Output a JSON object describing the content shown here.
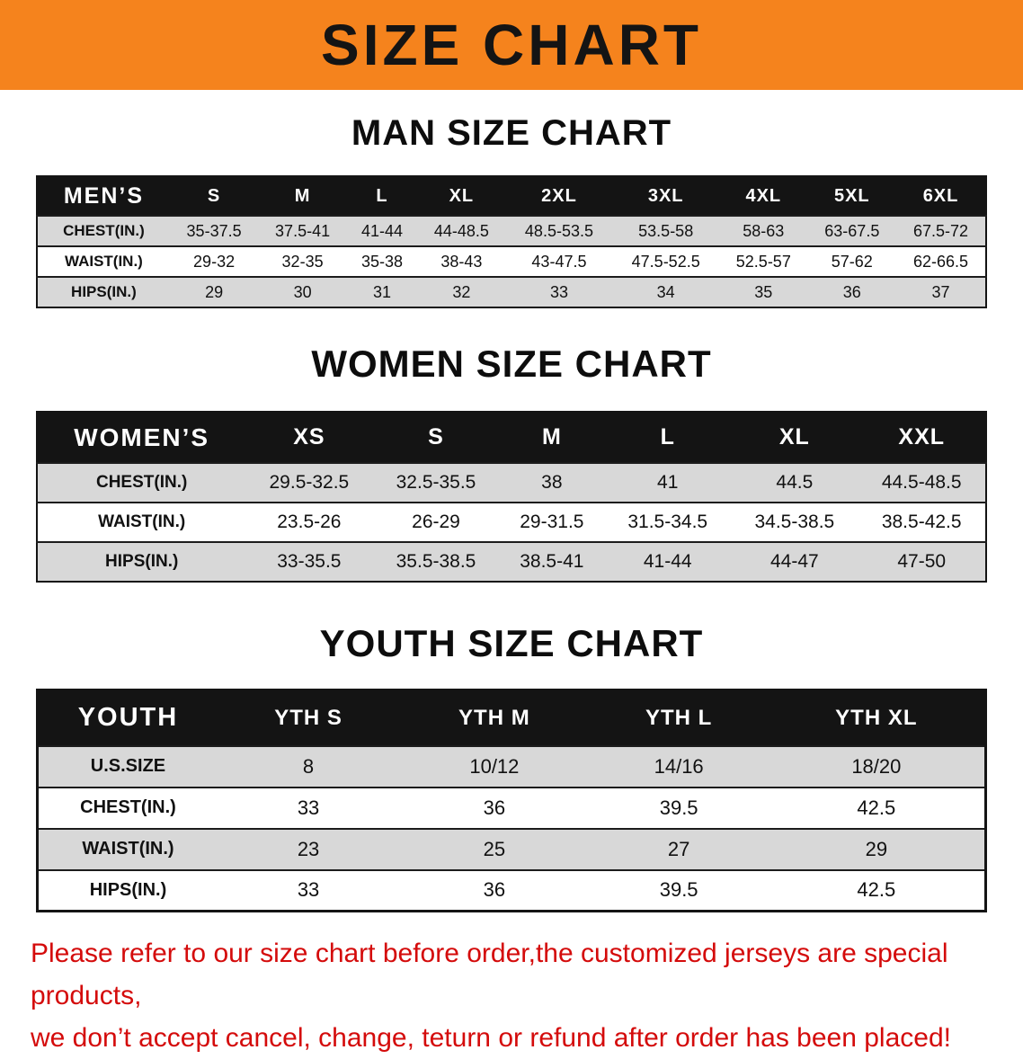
{
  "banner": {
    "title": "SIZE CHART",
    "bg_color": "#F5831D",
    "text_color": "#141414"
  },
  "sections": [
    {
      "heading": "MAN SIZE CHART",
      "table_name": "mens-size-table",
      "label": "MEN’S",
      "columns": [
        "S",
        "M",
        "L",
        "XL",
        "2XL",
        "3XL",
        "4XL",
        "5XL",
        "6XL"
      ],
      "rows": [
        {
          "label": "CHEST(IN.)",
          "values": [
            "35-37.5",
            "37.5-41",
            "41-44",
            "44-48.5",
            "48.5-53.5",
            "53.5-58",
            "58-63",
            "63-67.5",
            "67.5-72"
          ]
        },
        {
          "label": "WAIST(IN.)",
          "values": [
            "29-32",
            "32-35",
            "35-38",
            "38-43",
            "43-47.5",
            "47.5-52.5",
            "52.5-57",
            "57-62",
            "62-66.5"
          ]
        },
        {
          "label": "HIPS(IN.)",
          "values": [
            "29",
            "30",
            "31",
            "32",
            "33",
            "34",
            "35",
            "36",
            "37"
          ]
        }
      ]
    },
    {
      "heading": "WOMEN SIZE CHART",
      "table_name": "womens-size-table",
      "label": "WOMEN’S",
      "columns": [
        "XS",
        "S",
        "M",
        "L",
        "XL",
        "XXL"
      ],
      "rows": [
        {
          "label": "CHEST(IN.)",
          "values": [
            "29.5-32.5",
            "32.5-35.5",
            "38",
            "41",
            "44.5",
            "44.5-48.5"
          ]
        },
        {
          "label": "WAIST(IN.)",
          "values": [
            "23.5-26",
            "26-29",
            "29-31.5",
            "31.5-34.5",
            "34.5-38.5",
            "38.5-42.5"
          ]
        },
        {
          "label": "HIPS(IN.)",
          "values": [
            "33-35.5",
            "35.5-38.5",
            "38.5-41",
            "41-44",
            "44-47",
            "47-50"
          ]
        }
      ]
    },
    {
      "heading": "YOUTH SIZE CHART",
      "table_name": "youth-size-table",
      "label": "YOUTH",
      "columns": [
        "YTH S",
        "YTH M",
        "YTH L",
        "YTH XL"
      ],
      "rows": [
        {
          "label": "U.S.SIZE",
          "values": [
            "8",
            "10/12",
            "14/16",
            "18/20"
          ]
        },
        {
          "label": "CHEST(IN.)",
          "values": [
            "33",
            "36",
            "39.5",
            "42.5"
          ]
        },
        {
          "label": "WAIST(IN.)",
          "values": [
            "23",
            "25",
            "27",
            "29"
          ]
        },
        {
          "label": "HIPS(IN.)",
          "values": [
            "33",
            "36",
            "39.5",
            "42.5"
          ]
        }
      ]
    }
  ],
  "disclaimer": {
    "line1": "Please refer to our size chart before order,the customized jerseys are special products,",
    "line2": "we don’t accept cancel, change, teturn or refund after order has been placed!",
    "color": "#d40b0b"
  }
}
